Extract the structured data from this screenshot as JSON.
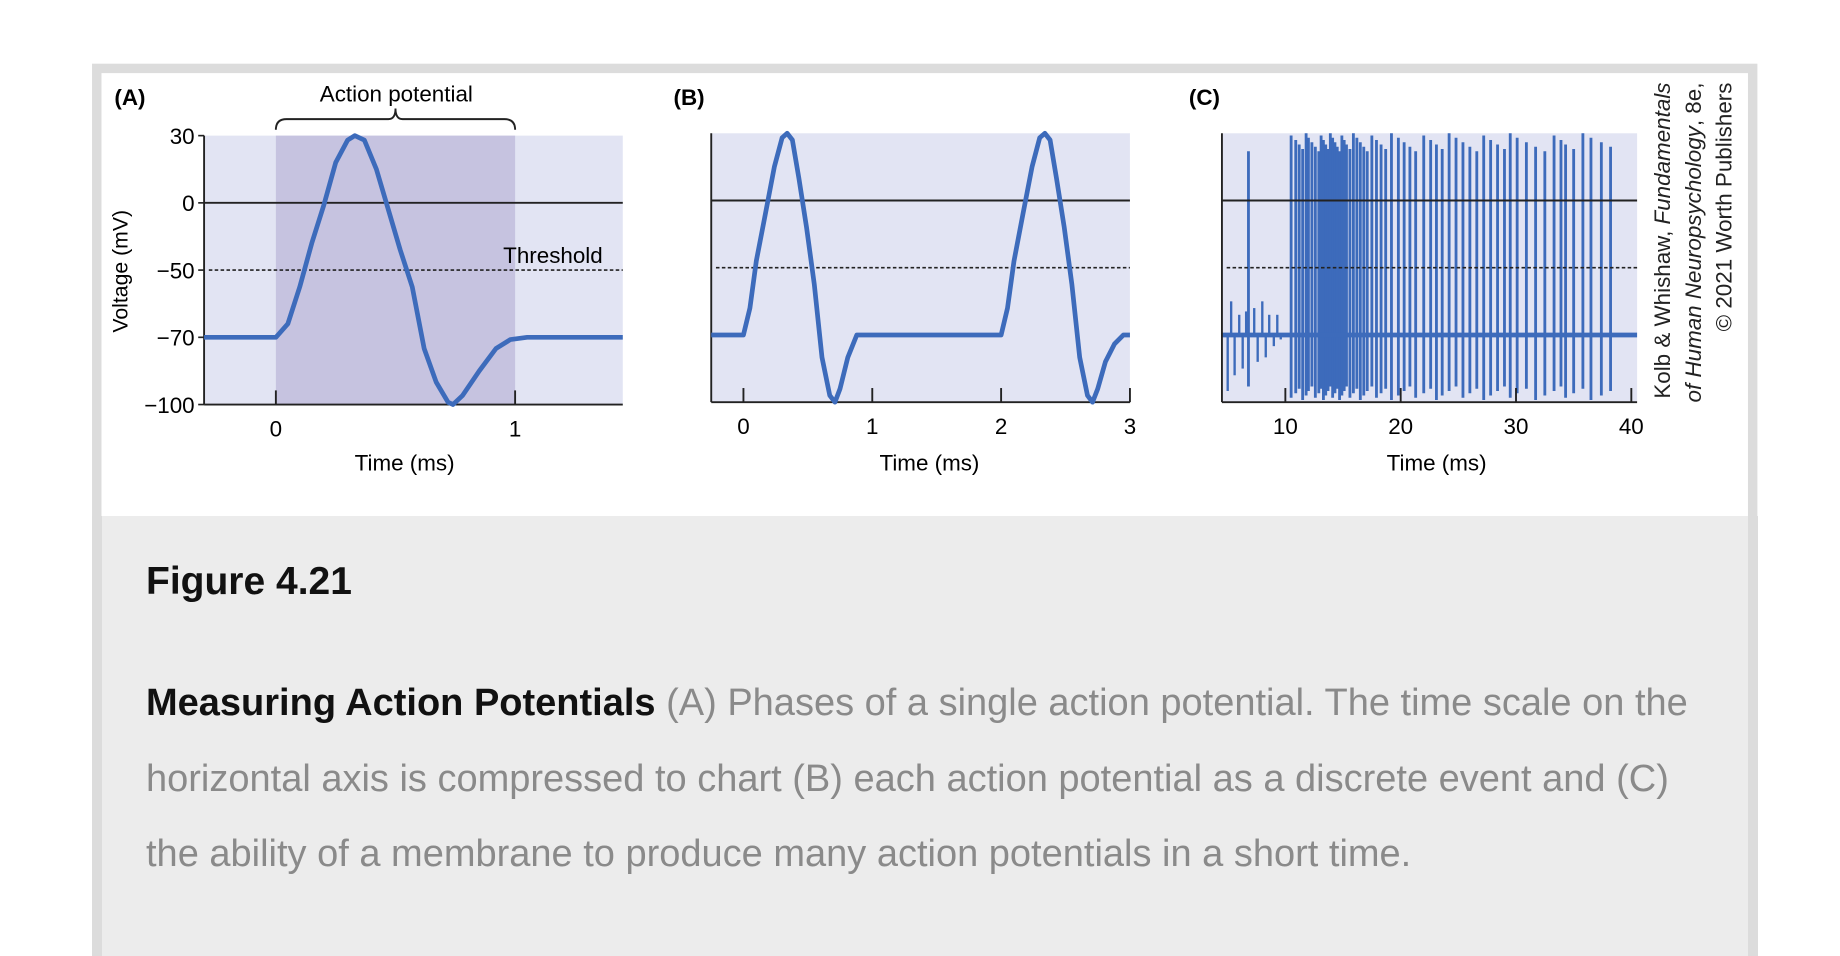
{
  "figure": {
    "title": "Figure 4.21",
    "caption_heading": "Measuring Action Potentials",
    "caption_body": " (A) Phases of a single action potential. The time scale on the horizontal axis is compressed to chart (B) each action potential as a discrete event and (C) the ability of a membrane to produce many action potentials in a short time.",
    "credit": {
      "line1_plain": "Kolb & Whishaw, ",
      "line1_italic": "Fundamentals",
      "line2_italic": "of Human Neuropsychology",
      "line2_plain": ", 8e,",
      "line3": "© 2021 Worth Publishers"
    }
  },
  "colors": {
    "plot_bg": "#e2e4f3",
    "shade": "#c6c3e0",
    "trace": "#3d6bbb",
    "axis": "#222222"
  },
  "chart_data": [
    {
      "type": "line",
      "panel_label": "(A)",
      "bracket_label": "Action potential",
      "bracket_range": [
        0,
        1
      ],
      "threshold_label": "Threshold",
      "threshold": -50,
      "ylabel": "Voltage (mV)",
      "xlabel": "Time (ms)",
      "yticks": [
        30,
        0,
        -50,
        -70,
        -100
      ],
      "xticks": [
        0,
        1
      ],
      "xlim": [
        -0.3,
        1.45
      ],
      "points": [
        [
          -0.3,
          -70
        ],
        [
          0.0,
          -70
        ],
        [
          0.05,
          -66
        ],
        [
          0.1,
          -55
        ],
        [
          0.15,
          -30
        ],
        [
          0.2,
          -2
        ],
        [
          0.25,
          18
        ],
        [
          0.3,
          28
        ],
        [
          0.33,
          30
        ],
        [
          0.37,
          28
        ],
        [
          0.42,
          15
        ],
        [
          0.47,
          -5
        ],
        [
          0.52,
          -35
        ],
        [
          0.57,
          -55
        ],
        [
          0.62,
          -75
        ],
        [
          0.67,
          -90
        ],
        [
          0.72,
          -99
        ],
        [
          0.74,
          -100
        ],
        [
          0.78,
          -96
        ],
        [
          0.85,
          -85
        ],
        [
          0.92,
          -75
        ],
        [
          0.98,
          -71
        ],
        [
          1.05,
          -70
        ],
        [
          1.45,
          -70
        ]
      ]
    },
    {
      "type": "line",
      "panel_label": "(B)",
      "xlabel": "Time (ms)",
      "threshold": -50,
      "xticks": [
        0,
        1,
        2,
        3
      ],
      "xlim": [
        -0.25,
        3
      ],
      "points": [
        [
          -0.25,
          -70
        ],
        [
          0.0,
          -70
        ],
        [
          0.05,
          -62
        ],
        [
          0.1,
          -45
        ],
        [
          0.17,
          -10
        ],
        [
          0.24,
          15
        ],
        [
          0.3,
          28
        ],
        [
          0.34,
          30
        ],
        [
          0.38,
          27
        ],
        [
          0.43,
          10
        ],
        [
          0.49,
          -20
        ],
        [
          0.55,
          -55
        ],
        [
          0.61,
          -80
        ],
        [
          0.67,
          -97
        ],
        [
          0.71,
          -100
        ],
        [
          0.75,
          -94
        ],
        [
          0.81,
          -80
        ],
        [
          0.88,
          -70
        ],
        [
          2.0,
          -70
        ],
        [
          2.05,
          -62
        ],
        [
          2.1,
          -45
        ],
        [
          2.17,
          -10
        ],
        [
          2.24,
          15
        ],
        [
          2.3,
          28
        ],
        [
          2.34,
          30
        ],
        [
          2.38,
          27
        ],
        [
          2.43,
          10
        ],
        [
          2.49,
          -20
        ],
        [
          2.55,
          -55
        ],
        [
          2.61,
          -80
        ],
        [
          2.67,
          -97
        ],
        [
          2.71,
          -100
        ],
        [
          2.75,
          -94
        ],
        [
          2.81,
          -82
        ],
        [
          2.88,
          -74
        ],
        [
          2.95,
          -70
        ],
        [
          3.0,
          -70
        ]
      ]
    },
    {
      "type": "line",
      "panel_label": "(C)",
      "xlabel": "Time (ms)",
      "threshold": -50,
      "baseline": -70,
      "xticks": [
        10,
        20,
        30,
        40
      ],
      "xlim": [
        4.5,
        40.5
      ],
      "subthreshold_events": [
        [
          5.0,
          -95
        ],
        [
          5.3,
          -60
        ],
        [
          5.6,
          -88
        ],
        [
          6.0,
          -64
        ],
        [
          6.3,
          -85
        ],
        [
          6.6,
          -63
        ],
        [
          7.3,
          -62
        ],
        [
          7.6,
          -82
        ],
        [
          8.0,
          -60
        ],
        [
          8.3,
          -80
        ],
        [
          8.6,
          -64
        ],
        [
          9.0,
          -75
        ],
        [
          9.3,
          -64
        ],
        [
          9.6,
          -72
        ]
      ],
      "spike_times": [
        6.8,
        10.5,
        10.9,
        11.2,
        11.5,
        11.8,
        12.0,
        12.3,
        12.6,
        12.9,
        13.1,
        13.3,
        13.5,
        13.7,
        13.9,
        14.1,
        14.3,
        14.5,
        14.7,
        14.9,
        15.1,
        15.3,
        15.6,
        15.9,
        16.2,
        16.5,
        16.8,
        17.1,
        17.5,
        17.9,
        18.3,
        18.7,
        19.2,
        19.8,
        20.3,
        20.8,
        21.3,
        22.0,
        22.6,
        23.1,
        23.6,
        24.2,
        24.8,
        25.4,
        26.0,
        26.6,
        27.2,
        27.8,
        28.4,
        29.0,
        29.5,
        30.1,
        30.9,
        31.7,
        32.5,
        33.3,
        33.9,
        34.3,
        35.0,
        35.8,
        36.5,
        37.4,
        38.2
      ]
    }
  ]
}
